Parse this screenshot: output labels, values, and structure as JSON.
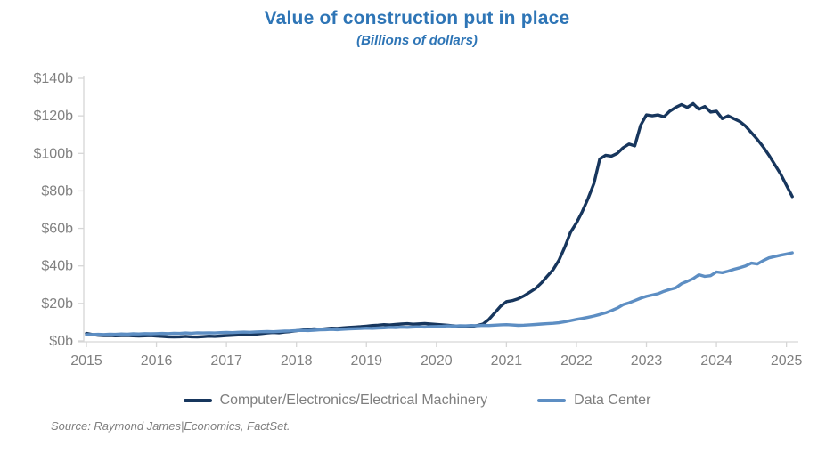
{
  "title": "Value of construction put in place",
  "subtitle": "(Billions of dollars)",
  "source": "Source: Raymond James|Economics, FactSet.",
  "colors": {
    "title": "#2e75b6",
    "series1": "#17365d",
    "series2": "#5d8ec3",
    "axis_line": "#d6d6d6",
    "tick_label": "#808080",
    "legend_label": "#7f7f7f",
    "source_text": "#7f7f7f",
    "background": "#ffffff"
  },
  "chart_data": {
    "type": "line",
    "title": "Value of construction put in place",
    "subtitle": "(Billions of dollars)",
    "xlabel": "",
    "ylabel": "",
    "grid": false,
    "legend_position": "bottom",
    "xlim": [
      2015,
      2025.17
    ],
    "ylim": [
      0,
      140
    ],
    "x_start_year": 2015,
    "x_frequency": "monthly",
    "y_ticks": [
      {
        "v": 0,
        "label": "$0b"
      },
      {
        "v": 20,
        "label": "$20b"
      },
      {
        "v": 40,
        "label": "$40b"
      },
      {
        "v": 60,
        "label": "$60b"
      },
      {
        "v": 80,
        "label": "$80b"
      },
      {
        "v": 100,
        "label": "$100b"
      },
      {
        "v": 120,
        "label": "$120b"
      },
      {
        "v": 140,
        "label": "$140b"
      }
    ],
    "x_ticks": [
      {
        "v": 2015,
        "label": "2015"
      },
      {
        "v": 2016,
        "label": "2016"
      },
      {
        "v": 2017,
        "label": "2017"
      },
      {
        "v": 2018,
        "label": "2018"
      },
      {
        "v": 2019,
        "label": "2019"
      },
      {
        "v": 2020,
        "label": "2020"
      },
      {
        "v": 2021,
        "label": "2021"
      },
      {
        "v": 2022,
        "label": "2022"
      },
      {
        "v": 2023,
        "label": "2023"
      },
      {
        "v": 2024,
        "label": "2024"
      },
      {
        "v": 2025,
        "label": "2025"
      }
    ],
    "series": [
      {
        "name": "Computer/Electronics/Electrical Machinery",
        "color_key": "series1",
        "values": [
          4.0,
          3.4,
          3.0,
          2.8,
          2.9,
          2.7,
          2.8,
          2.9,
          2.7,
          2.6,
          2.7,
          2.8,
          2.6,
          2.4,
          2.2,
          2.1,
          2.2,
          2.4,
          2.2,
          2.1,
          2.3,
          2.5,
          2.4,
          2.6,
          2.8,
          3.0,
          3.2,
          3.5,
          3.3,
          3.6,
          3.9,
          4.2,
          4.5,
          4.3,
          4.7,
          5.0,
          5.4,
          5.8,
          6.1,
          6.4,
          6.2,
          6.5,
          6.8,
          6.7,
          7.0,
          7.2,
          7.4,
          7.6,
          7.9,
          8.2,
          8.4,
          8.7,
          8.5,
          8.8,
          9.0,
          9.2,
          8.9,
          9.1,
          9.3,
          9.0,
          8.8,
          8.6,
          8.3,
          8.0,
          7.7,
          7.5,
          7.7,
          8.2,
          9.0,
          11.5,
          15.0,
          18.5,
          21.0,
          21.5,
          22.5,
          24.0,
          26.0,
          28.0,
          31.0,
          34.5,
          38.0,
          43.0,
          50.0,
          58.0,
          63.0,
          69.0,
          76.0,
          84.0,
          97.0,
          99.0,
          98.5,
          100.0,
          103.0,
          105.0,
          104.0,
          115.0,
          120.5,
          120.0,
          120.5,
          119.5,
          122.5,
          124.5,
          126.0,
          124.5,
          126.5,
          123.5,
          125.0,
          122.0,
          122.5,
          118.5,
          120.0,
          118.5,
          117.0,
          114.5,
          111.0,
          107.5,
          103.5,
          99.0,
          94.0,
          89.0,
          83.0,
          77.0
        ]
      },
      {
        "name": "Data Center",
        "color_key": "series2",
        "values": [
          3.3,
          3.4,
          3.5,
          3.4,
          3.6,
          3.5,
          3.7,
          3.6,
          3.8,
          3.7,
          3.9,
          3.8,
          3.9,
          4.0,
          3.9,
          4.1,
          4.0,
          4.2,
          4.1,
          4.3,
          4.2,
          4.3,
          4.2,
          4.4,
          4.5,
          4.4,
          4.6,
          4.7,
          4.6,
          4.8,
          4.9,
          5.0,
          4.9,
          5.1,
          5.2,
          5.3,
          5.5,
          5.6,
          5.5,
          5.7,
          5.9,
          6.0,
          6.1,
          6.0,
          6.2,
          6.4,
          6.5,
          6.6,
          6.8,
          6.7,
          6.9,
          7.0,
          7.2,
          7.1,
          7.3,
          7.2,
          7.4,
          7.5,
          7.4,
          7.6,
          7.7,
          7.8,
          8.0,
          7.9,
          8.1,
          8.0,
          8.2,
          8.1,
          8.3,
          8.2,
          8.4,
          8.6,
          8.7,
          8.5,
          8.3,
          8.4,
          8.6,
          8.8,
          9.0,
          9.2,
          9.4,
          9.7,
          10.2,
          10.8,
          11.5,
          12.0,
          12.6,
          13.3,
          14.1,
          15.0,
          16.2,
          17.5,
          19.3,
          20.3,
          21.5,
          22.8,
          23.8,
          24.5,
          25.2,
          26.5,
          27.5,
          28.3,
          30.5,
          31.8,
          33.2,
          35.3,
          34.4,
          34.8,
          36.8,
          36.4,
          37.2,
          38.2,
          39.0,
          40.0,
          41.5,
          41.0,
          42.8,
          44.3,
          45.0,
          45.7,
          46.3,
          47.0
        ]
      }
    ]
  }
}
